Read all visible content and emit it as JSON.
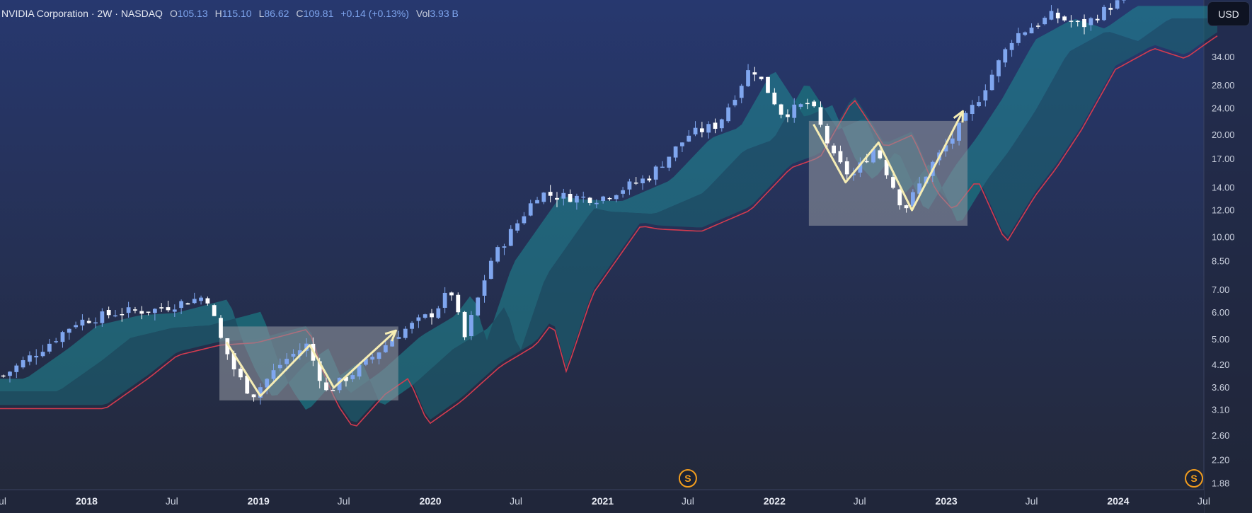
{
  "header": {
    "title": "NVIDIA Corporation · 2W · NASDAQ",
    "open_label": "O",
    "open_value": "105.13",
    "high_label": "H",
    "high_value": "115.10",
    "low_label": "L",
    "low_value": "86.62",
    "close_label": "C",
    "close_value": "109.81",
    "change": "+0.14 (+0.13%)",
    "volume_label": "Vol",
    "volume_value": "3.93 B"
  },
  "currency_button": "USD",
  "split_marker_label": "S",
  "colors": {
    "background_top": "#27386f",
    "background_bottom": "#232838",
    "candle_up": "#7fa6ef",
    "candle_down": "#ffffff",
    "band_fast": "#1f8c96",
    "band_slow": "#1a6473",
    "ma_line": "#d43b4f",
    "highlight_box": "#8e939d",
    "pattern_line": "#f6edb4",
    "split_marker": "#f29d1e"
  },
  "chart_data": {
    "type": "candlestick",
    "title": "NVIDIA Corporation · 2W · NASDAQ",
    "y_scale": "log",
    "ylim": [
      1.8,
      50
    ],
    "y_ticks": [
      "34.00",
      "28.00",
      "24.00",
      "20.00",
      "17.00",
      "14.00",
      "12.00",
      "10.00",
      "8.50",
      "7.00",
      "6.00",
      "5.00",
      "4.20",
      "3.60",
      "3.10",
      "2.60",
      "2.20",
      "1.88"
    ],
    "x_ticks": [
      "Jul",
      "2018",
      "Jul",
      "2019",
      "Jul",
      "2020",
      "Jul",
      "2021",
      "Jul",
      "2022",
      "Jul",
      "2023",
      "Jul",
      "2024",
      "Jul"
    ],
    "xlim": [
      "2017-07-01",
      "2024-07-01"
    ],
    "candles_anchor": [
      [
        "2017-07-15",
        3.9
      ],
      [
        "2017-10-15",
        4.8
      ],
      [
        "2017-12-15",
        5.6
      ],
      [
        "2018-03-15",
        6.0
      ],
      [
        "2018-06-01",
        6.1
      ],
      [
        "2018-09-20",
        6.7
      ],
      [
        "2018-10-20",
        5.0
      ],
      [
        "2018-11-20",
        4.0
      ],
      [
        "2018-12-25",
        3.4
      ],
      [
        "2019-03-01",
        4.3
      ],
      [
        "2019-04-20",
        4.8
      ],
      [
        "2019-06-01",
        3.5
      ],
      [
        "2019-08-10",
        4.1
      ],
      [
        "2019-11-01",
        5.2
      ],
      [
        "2020-01-15",
        6.0
      ],
      [
        "2020-02-20",
        7.0
      ],
      [
        "2020-03-20",
        5.0
      ],
      [
        "2020-05-15",
        8.5
      ],
      [
        "2020-08-25",
        13.5
      ],
      [
        "2020-10-01",
        13.2
      ],
      [
        "2021-01-01",
        13.0
      ],
      [
        "2021-04-15",
        15.0
      ],
      [
        "2021-07-10",
        20.0
      ],
      [
        "2021-09-10",
        21.5
      ],
      [
        "2021-11-20",
        32.0
      ],
      [
        "2021-12-25",
        27.0
      ],
      [
        "2022-01-25",
        23.0
      ],
      [
        "2022-03-25",
        25.0
      ],
      [
        "2022-05-15",
        17.0
      ],
      [
        "2022-06-20",
        15.0
      ],
      [
        "2022-08-10",
        18.5
      ],
      [
        "2022-10-10",
        12.0
      ],
      [
        "2022-12-10",
        16.5
      ],
      [
        "2023-01-25",
        20.0
      ],
      [
        "2023-03-20",
        26.0
      ],
      [
        "2023-05-30",
        39.0
      ],
      [
        "2023-08-20",
        45.0
      ],
      [
        "2023-10-25",
        42.0
      ],
      [
        "2024-01-01",
        49.0
      ]
    ],
    "annotations": [
      {
        "type": "box",
        "x": [
          "2018-10-10",
          "2019-10-25"
        ],
        "y": [
          3.3,
          5.45
        ]
      },
      {
        "type": "box",
        "x": [
          "2022-03-15",
          "2023-02-15"
        ],
        "y": [
          10.8,
          22.0
        ]
      },
      {
        "type": "path",
        "points": [
          [
            "2018-10-25",
            4.9
          ],
          [
            "2019-01-05",
            3.4
          ],
          [
            "2019-04-20",
            4.8
          ],
          [
            "2019-06-10",
            3.6
          ],
          [
            "2019-10-20",
            5.3
          ]
        ]
      },
      {
        "type": "path",
        "points": [
          [
            "2022-03-25",
            21.5
          ],
          [
            "2022-06-01",
            14.5
          ],
          [
            "2022-08-10",
            19.0
          ],
          [
            "2022-10-20",
            12.0
          ],
          [
            "2023-02-05",
            23.5
          ]
        ]
      },
      {
        "type": "split",
        "x": "2021-07-01",
        "label": "S"
      },
      {
        "type": "split",
        "x": "2024-06-10",
        "label": "S"
      }
    ]
  }
}
